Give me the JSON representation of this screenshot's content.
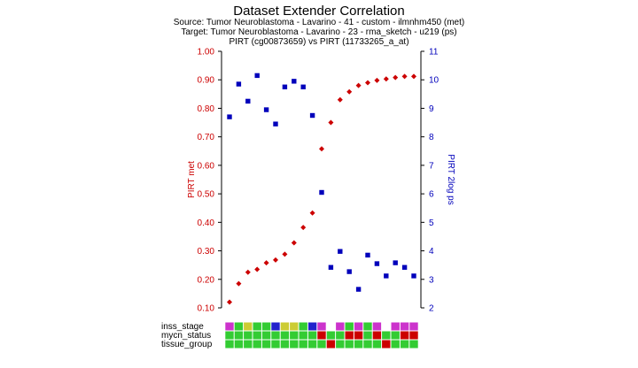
{
  "header": {
    "title": "Dataset Extender Correlation",
    "source": "Source: Tumor Neuroblastoma  - Lavarino - 41 - custom - ilmnhm450 (met)",
    "target": "Target: Tumor Neuroblastoma  - Lavarino - 23 - rma_sketch - u219 (ps)",
    "subtitle": "PIRT (cg00873659) vs PIRT (11733265_a_at)"
  },
  "chart_data": {
    "type": "scatter",
    "y_left": {
      "label": "PIRT  met",
      "range": [
        0.1,
        1.0
      ],
      "ticks": [
        "0.10",
        "0.20",
        "0.30",
        "0.40",
        "0.50",
        "0.60",
        "0.70",
        "0.80",
        "0.90",
        "1.00"
      ],
      "color": "#cc0000"
    },
    "y_right": {
      "label": "PIRT  2log  ps",
      "range": [
        2,
        11
      ],
      "ticks": [
        "2",
        "3",
        "4",
        "5",
        "6",
        "7",
        "8",
        "9",
        "10",
        "11"
      ],
      "color": "#0000bb"
    },
    "grid": false,
    "series": [
      {
        "name": "PIRT  met",
        "axis": "left",
        "marker": "diamond",
        "color": "#cc0000",
        "values": [
          0.12,
          0.185,
          0.225,
          0.235,
          0.258,
          0.268,
          0.288,
          0.328,
          0.382,
          0.433,
          0.658,
          0.75,
          0.83,
          0.858,
          0.88,
          0.89,
          0.898,
          0.903,
          0.908,
          0.912,
          0.912
        ]
      },
      {
        "name": "PIRT  2log  ps",
        "axis": "right",
        "marker": "square",
        "color": "#0000bb",
        "values": [
          8.7,
          9.85,
          9.25,
          10.15,
          8.95,
          8.45,
          9.75,
          9.95,
          9.75,
          8.75,
          6.05,
          3.42,
          3.98,
          3.27,
          2.65,
          3.85,
          3.55,
          3.12,
          3.58,
          3.42,
          3.12
        ]
      }
    ],
    "annotation_tracks": [
      {
        "label": "inss_stage",
        "colors": [
          "#cc33cc",
          "#33cc33",
          "#cccc33",
          "#33cc33",
          "#33cc33",
          "#2222cc",
          "#cccc33",
          "#cccc33",
          "#33cc33",
          "#2222cc",
          "#cc33cc",
          "#ffffff",
          "#cc33cc",
          "#33cc33",
          "#cc33cc",
          "#33cc33",
          "#cc33cc",
          "#ffffff",
          "#cc33cc",
          "#cc33cc",
          "#cc33cc"
        ]
      },
      {
        "label": "mycn_status",
        "colors": [
          "#33cc33",
          "#33cc33",
          "#33cc33",
          "#33cc33",
          "#33cc33",
          "#33cc33",
          "#33cc33",
          "#33cc33",
          "#33cc33",
          "#33cc33",
          "#cc0000",
          "#33cc33",
          "#33cc33",
          "#cc0000",
          "#cc0000",
          "#33cc33",
          "#cc0000",
          "#33cc33",
          "#33cc33",
          "#cc0000",
          "#cc0000"
        ]
      },
      {
        "label": "tissue_group",
        "colors": [
          "#33cc33",
          "#33cc33",
          "#33cc33",
          "#33cc33",
          "#33cc33",
          "#33cc33",
          "#33cc33",
          "#33cc33",
          "#33cc33",
          "#33cc33",
          "#33cc33",
          "#cc0000",
          "#33cc33",
          "#33cc33",
          "#33cc33",
          "#33cc33",
          "#33cc33",
          "#cc0000",
          "#33cc33",
          "#33cc33",
          "#33cc33"
        ]
      }
    ]
  }
}
